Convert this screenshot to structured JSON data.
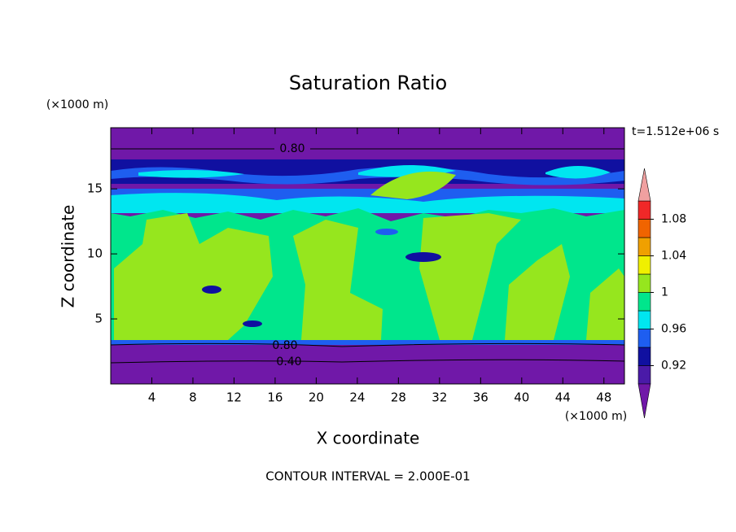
{
  "chart_data": {
    "type": "contour",
    "title": "Saturation Ratio",
    "x_label": "X coordinate",
    "y_label": "Z coordinate",
    "x_unit": "(×1000 m)",
    "y_unit": "(×1000 m)",
    "time_label": "t=1.512e+06 s",
    "footer": "CONTOUR INTERVAL = 2.000E-01",
    "xlim": [
      0,
      50
    ],
    "xticks": [
      4,
      8,
      12,
      16,
      20,
      24,
      28,
      32,
      36,
      40,
      44,
      48
    ],
    "ylim": [
      0,
      19.7
    ],
    "yticks": [
      5,
      10,
      15
    ],
    "levels": [
      0.9,
      0.92,
      0.94,
      0.96,
      0.98,
      1,
      1.02,
      1.04,
      1.06,
      1.08,
      1.1
    ],
    "colors": [
      "#4a1aa8",
      "#1010a0",
      "#1e5ef0",
      "#00e6f0",
      "#00e68c",
      "#96e61e",
      "#f0f000",
      "#f0a000",
      "#f06400",
      "#f02828"
    ],
    "under_color": "#7018a8",
    "over_color": "#f0a0a0",
    "colorbar_ticks": [
      0.92,
      0.96,
      1,
      1.04,
      1.08
    ],
    "contour_lines": [
      {
        "value": 0.8,
        "label": "0.80"
      },
      {
        "value": 0.8,
        "label": "0.80"
      },
      {
        "value": 0.4,
        "label": "0.40"
      }
    ]
  }
}
